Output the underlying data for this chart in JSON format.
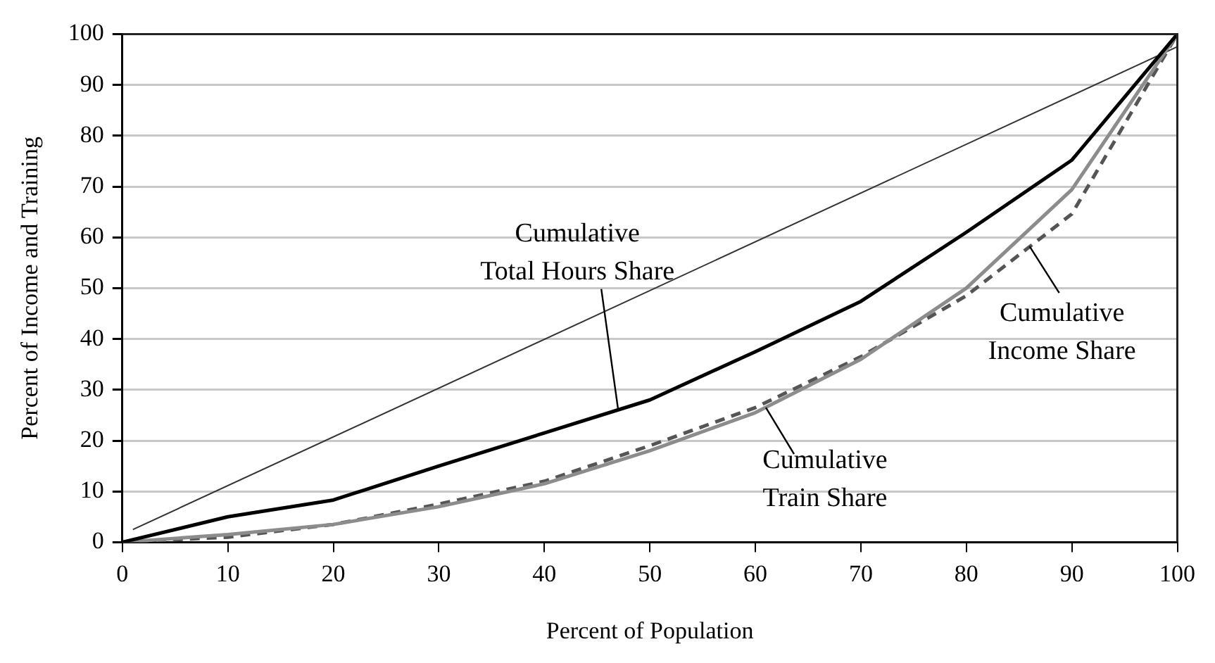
{
  "chart_data": {
    "type": "line",
    "xlabel": "Percent of Population",
    "ylabel": "Percent of Income and Training",
    "x": [
      0,
      10,
      20,
      30,
      40,
      50,
      60,
      70,
      80,
      90,
      100
    ],
    "xlim": [
      0,
      100
    ],
    "xticks": [
      0,
      10,
      20,
      30,
      40,
      50,
      60,
      70,
      80,
      90,
      100
    ],
    "ylim": [
      0,
      100
    ],
    "yticks": [
      0,
      10,
      20,
      30,
      40,
      50,
      60,
      70,
      80,
      90,
      100
    ],
    "grid": "y",
    "marker": "none",
    "annotations": [
      {
        "text": "Cumulative Total Hours Share",
        "x": 47,
        "y": 26
      },
      {
        "text": "Cumulative Train Share",
        "x": 61,
        "y": 26.5
      },
      {
        "text": "Cumulative Income Share",
        "x": 86,
        "y": 58.2
      }
    ],
    "series": [
      {
        "color": "#000000",
        "values": [
          0,
          5,
          8.3,
          15,
          21.5,
          28,
          37.5,
          47.4,
          61,
          75.2,
          100
        ]
      },
      {
        "color": "#8c8c8c",
        "values": [
          0,
          1.5,
          3.5,
          7,
          11.5,
          18,
          25.5,
          36,
          50,
          69.4,
          100
        ]
      },
      {
        "color": "#555555",
        "line_style": "dashed",
        "values": [
          0,
          1,
          3.5,
          7.5,
          12,
          19,
          26.5,
          36.5,
          48.5,
          64.6,
          100
        ]
      },
      {
        "color": "#333333",
        "x": [
          1,
          100
        ],
        "values": [
          2.5,
          97.5
        ]
      }
    ]
  }
}
